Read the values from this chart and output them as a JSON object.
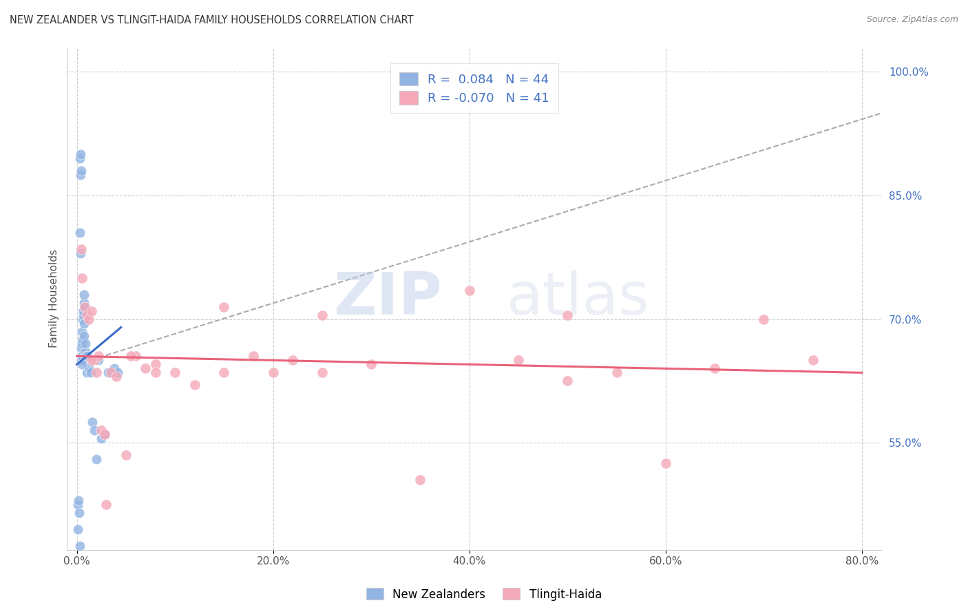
{
  "title": "NEW ZEALANDER VS TLINGIT-HAIDA FAMILY HOUSEHOLDS CORRELATION CHART",
  "source": "Source: ZipAtlas.com",
  "xlabel_ticks": [
    "0.0%",
    "20.0%",
    "40.0%",
    "60.0%",
    "80.0%"
  ],
  "xlabel_tick_vals": [
    0.0,
    20.0,
    40.0,
    60.0,
    80.0
  ],
  "ylabel": "Family Households",
  "ylabel_right_ticks": [
    "100.0%",
    "85.0%",
    "70.0%",
    "55.0%"
  ],
  "ylabel_right_tick_vals": [
    100.0,
    85.0,
    70.0,
    55.0
  ],
  "ylim": [
    42.0,
    103.0
  ],
  "xlim": [
    -1.0,
    82.0
  ],
  "r_blue": 0.084,
  "n_blue": 44,
  "r_pink": -0.07,
  "n_pink": 41,
  "legend_label_blue": "New Zealanders",
  "legend_label_pink": "Tlingit-Haida",
  "blue_color": "#92B4E3",
  "pink_color": "#F4A8B8",
  "trendline_blue_color": "#3A6BC8",
  "trendline_pink_color": "#E8637A",
  "trendline_dashed_color": "#AAAAAA",
  "watermark_zip": "ZIP",
  "watermark_atlas": "atlas",
  "background_color": "#FFFFFF",
  "nz_x": [
    0.08,
    0.12,
    0.18,
    0.22,
    0.28,
    0.32,
    0.35,
    0.38,
    0.4,
    0.42,
    0.45,
    0.48,
    0.5,
    0.52,
    0.55,
    0.58,
    0.6,
    0.62,
    0.65,
    0.68,
    0.7,
    0.72,
    0.75,
    0.78,
    0.8,
    0.85,
    0.9,
    0.95,
    1.0,
    1.1,
    1.2,
    1.4,
    1.6,
    1.8,
    2.0,
    2.2,
    2.5,
    2.8,
    3.2,
    3.8,
    4.2,
    0.3,
    0.55,
    0.75
  ],
  "nz_y": [
    47.5,
    44.5,
    48.0,
    46.5,
    80.5,
    89.5,
    87.5,
    90.0,
    78.0,
    88.0,
    65.0,
    66.5,
    67.0,
    65.5,
    68.5,
    65.0,
    67.5,
    70.0,
    70.5,
    71.0,
    68.0,
    69.5,
    72.0,
    71.5,
    65.5,
    66.0,
    67.0,
    65.5,
    63.5,
    65.5,
    64.0,
    63.5,
    57.5,
    56.5,
    53.0,
    65.0,
    55.5,
    56.0,
    63.5,
    64.0,
    63.5,
    42.5,
    64.5,
    73.0
  ],
  "th_x": [
    0.45,
    0.55,
    0.8,
    1.0,
    1.2,
    1.5,
    1.8,
    2.0,
    2.2,
    2.5,
    2.8,
    3.5,
    4.0,
    5.0,
    6.0,
    7.0,
    8.0,
    10.0,
    12.0,
    15.0,
    18.0,
    20.0,
    22.0,
    25.0,
    30.0,
    35.0,
    40.0,
    45.0,
    50.0,
    55.0,
    60.0,
    65.0,
    70.0,
    75.0,
    1.5,
    3.0,
    5.5,
    8.0,
    15.0,
    25.0,
    50.0
  ],
  "th_y": [
    78.5,
    75.0,
    71.5,
    70.5,
    70.0,
    71.0,
    65.0,
    63.5,
    65.5,
    56.5,
    56.0,
    63.5,
    63.0,
    53.5,
    65.5,
    64.0,
    64.5,
    63.5,
    62.0,
    71.5,
    65.5,
    63.5,
    65.0,
    70.5,
    64.5,
    50.5,
    73.5,
    65.0,
    70.5,
    63.5,
    52.5,
    64.0,
    70.0,
    65.0,
    65.0,
    47.5,
    65.5,
    63.5,
    63.5,
    63.5,
    62.5
  ],
  "blue_trendline_x0": 0.0,
  "blue_trendline_x1": 4.5,
  "blue_trendline_y0": 64.5,
  "blue_trendline_y1": 69.0,
  "blue_dashed_x0": 0.0,
  "blue_dashed_x1": 82.0,
  "blue_dashed_y0": 64.5,
  "blue_dashed_y1": 95.0,
  "pink_trendline_x0": 0.0,
  "pink_trendline_x1": 80.0,
  "pink_trendline_y0": 65.5,
  "pink_trendline_y1": 63.5
}
